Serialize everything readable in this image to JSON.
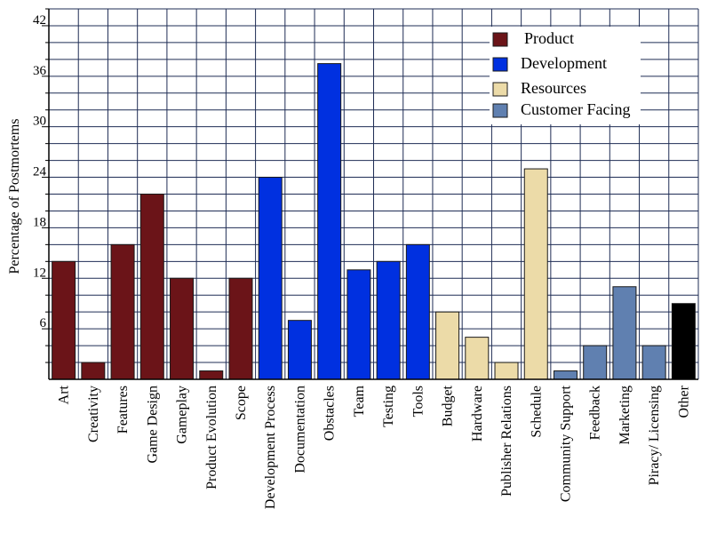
{
  "chart_data": {
    "type": "bar",
    "title": "",
    "xlabel": "",
    "ylabel": "Percentage of Postmortems",
    "ylim": [
      0,
      44
    ],
    "yticks": [
      6,
      12,
      18,
      24,
      30,
      36,
      42
    ],
    "grid": true,
    "legend_position": "top-right",
    "groups": [
      {
        "name": "Product",
        "color": "#6b1418"
      },
      {
        "name": "Development",
        "color": "#0030e0"
      },
      {
        "name": "Resources",
        "color": "#ecdba8"
      },
      {
        "name": "Customer Facing",
        "color": "#6080b0"
      }
    ],
    "categories": [
      "Art",
      "Creativity",
      "Features",
      "Game Design",
      "Gameplay",
      "Product  Evolution",
      "Scope",
      "Development Process",
      "Documentation",
      "Obstacles",
      "Team",
      "Testing",
      "Tools",
      "Budget",
      "Hardware",
      "Publisher Relations",
      "Schedule",
      "Community Support",
      "Feedback",
      "Marketing",
      "Piracy/ Licensing",
      "Other"
    ],
    "values": [
      14,
      2,
      16,
      22,
      12,
      1,
      12,
      24,
      7,
      37.5,
      13,
      14,
      16,
      8,
      5,
      2,
      25,
      1,
      4,
      11,
      4,
      9
    ],
    "bar_groups": [
      "Product",
      "Product",
      "Product",
      "Product",
      "Product",
      "Product",
      "Product",
      "Development",
      "Development",
      "Development",
      "Development",
      "Development",
      "Development",
      "Resources",
      "Resources",
      "Resources",
      "Resources",
      "Customer Facing",
      "Customer Facing",
      "Customer Facing",
      "Customer Facing",
      "Other"
    ],
    "bar_colors": [
      "#6b1418",
      "#6b1418",
      "#6b1418",
      "#6b1418",
      "#6b1418",
      "#6b1418",
      "#6b1418",
      "#0030e0",
      "#0030e0",
      "#0030e0",
      "#0030e0",
      "#0030e0",
      "#0030e0",
      "#ecdba8",
      "#ecdba8",
      "#ecdba8",
      "#ecdba8",
      "#6080b0",
      "#6080b0",
      "#6080b0",
      "#6080b0",
      "#000000"
    ]
  }
}
